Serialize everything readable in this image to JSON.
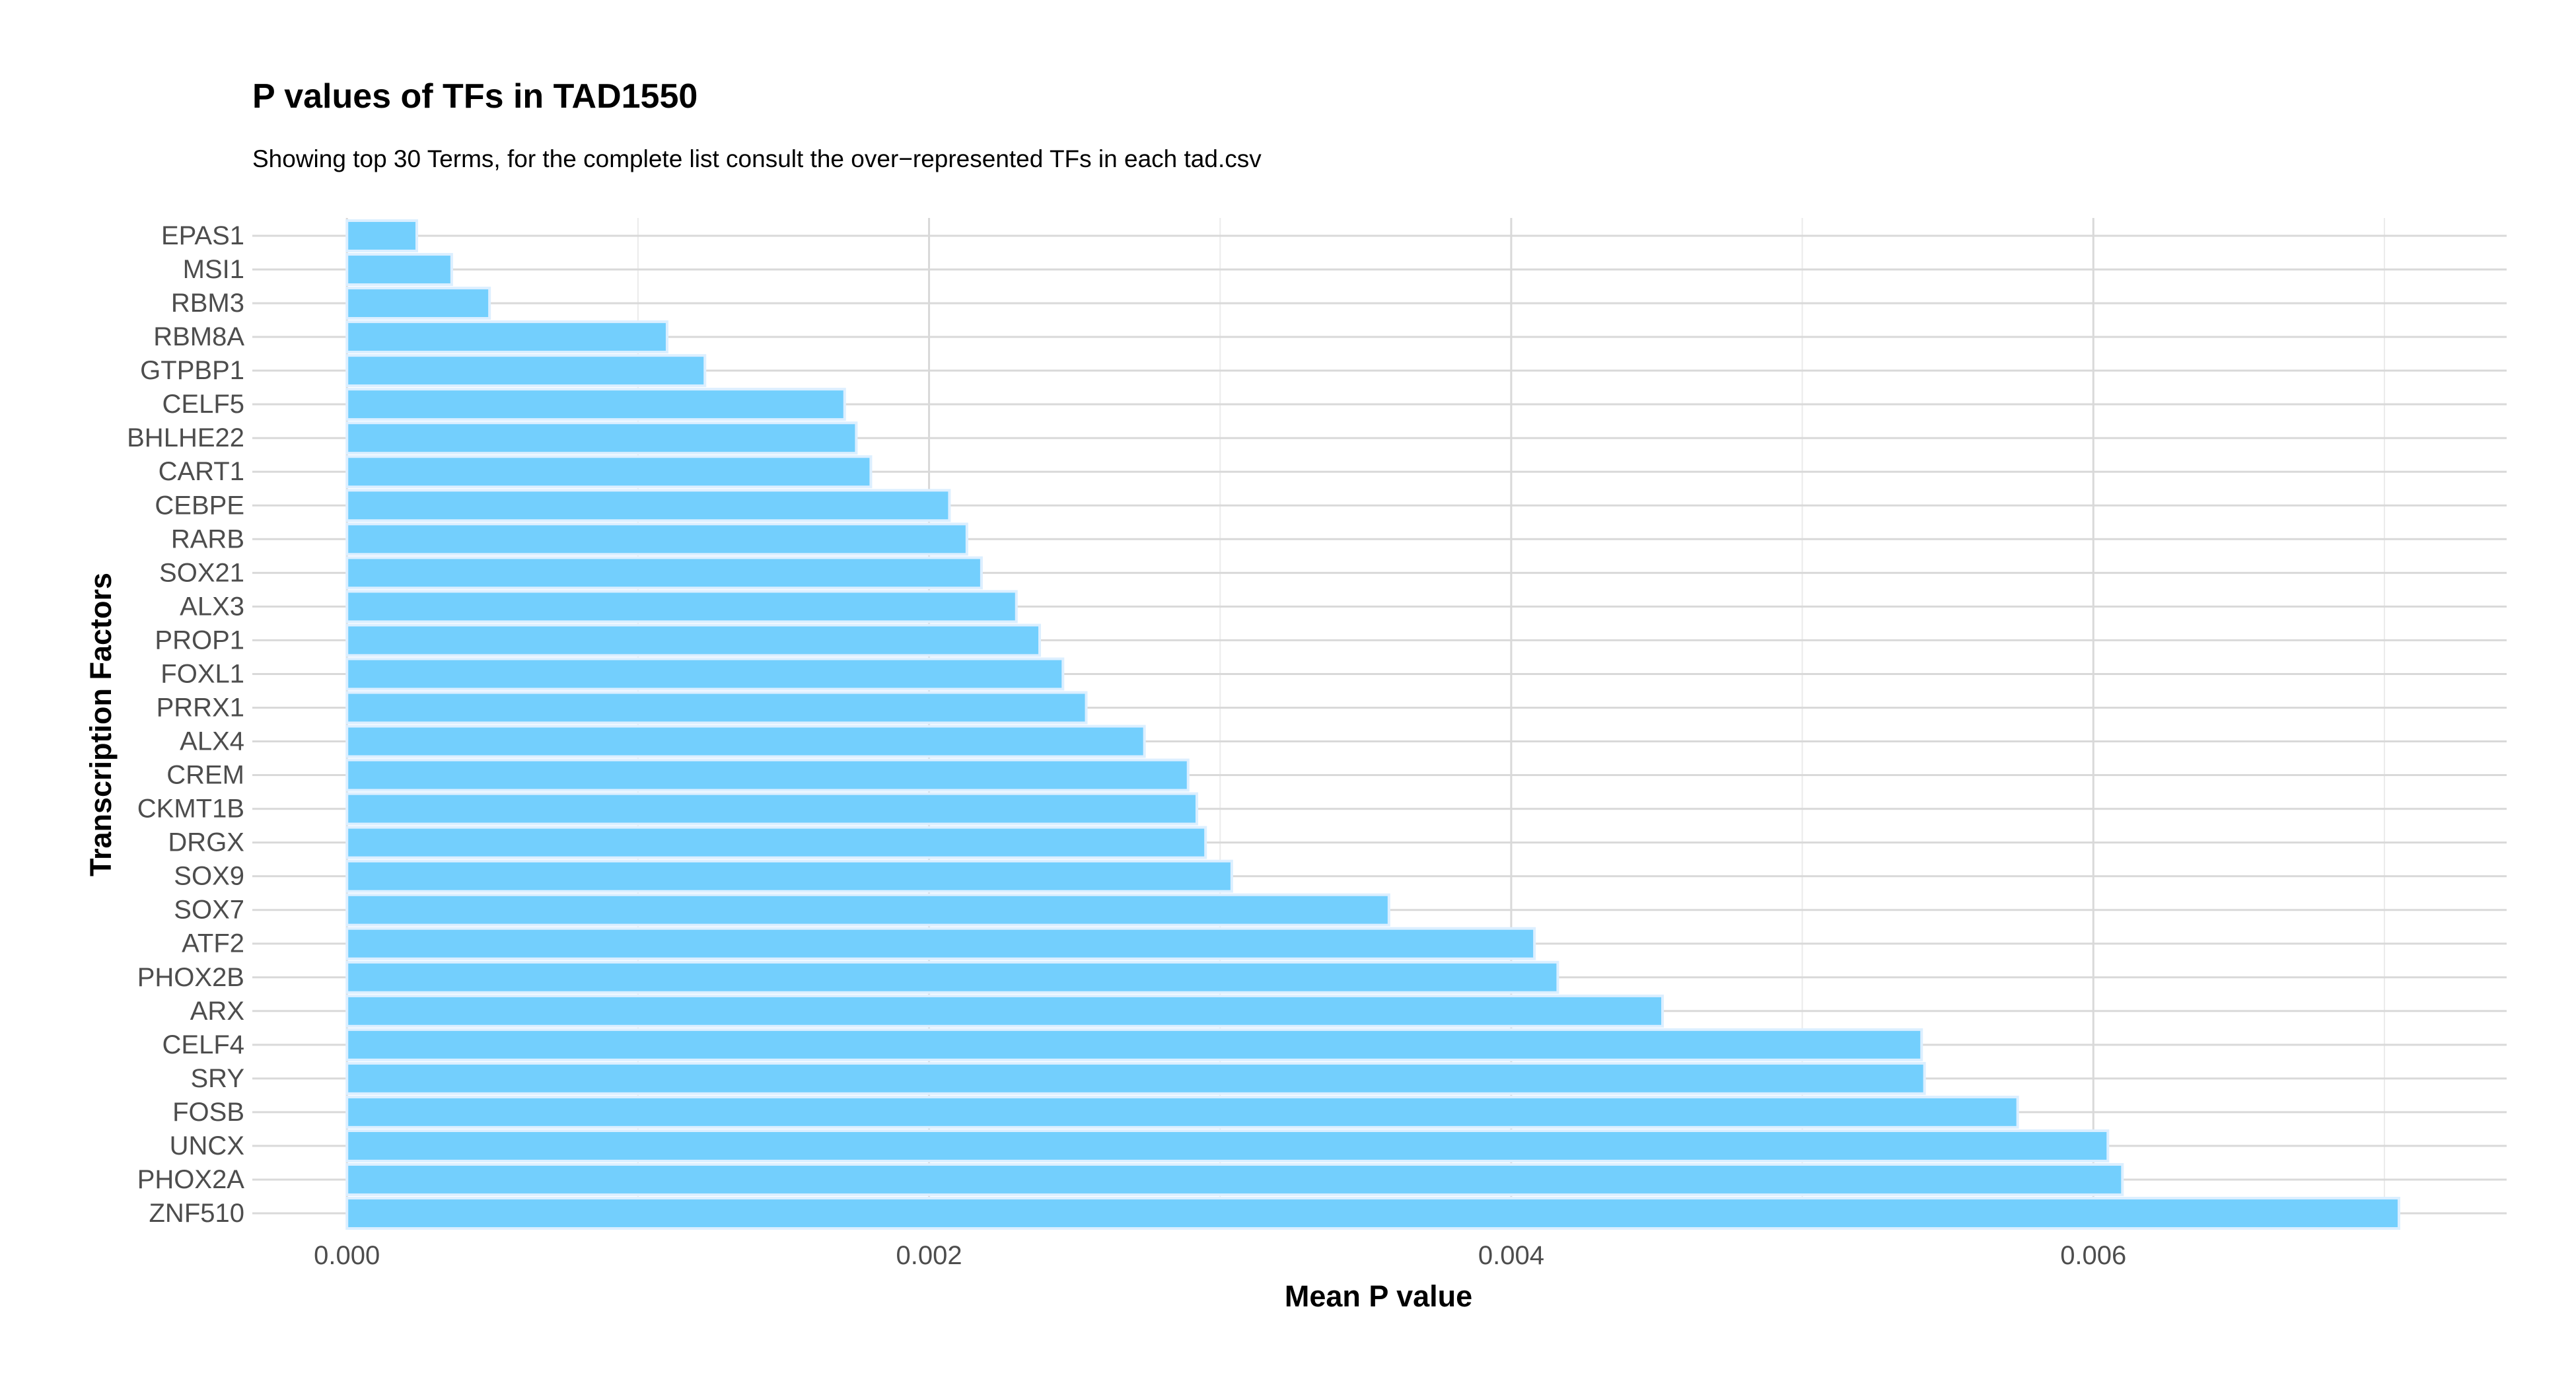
{
  "chart_data": {
    "type": "bar",
    "orientation": "horizontal",
    "title": "P values of TFs in TAD1550",
    "subtitle": "Showing top 30 Terms, for the complete list consult the over−represented TFs in each tad.csv",
    "xlabel": "Mean P value",
    "ylabel": "Transcription Factors",
    "xlim": [
      -0.000325,
      0.00742
    ],
    "x_ticks": [
      0.0,
      0.002,
      0.004,
      0.006
    ],
    "x_tick_labels": [
      "0.000",
      "0.002",
      "0.004",
      "0.006"
    ],
    "x_minor_ticks": [
      0.001,
      0.003,
      0.005,
      0.007
    ],
    "grid": true,
    "bar_color": "#73cffd",
    "bar_outline_color": "#dcefff",
    "categories": [
      "EPAS1",
      "MSI1",
      "RBM3",
      "RBM8A",
      "GTPBP1",
      "CELF5",
      "BHLHE22",
      "CART1",
      "CEBPE",
      "RARB",
      "SOX21",
      "ALX3",
      "PROP1",
      "FOXL1",
      "PRRX1",
      "ALX4",
      "CREM",
      "CKMT1B",
      "DRGX",
      "SOX9",
      "SOX7",
      "ATF2",
      "PHOX2B",
      "ARX",
      "CELF4",
      "SRY",
      "FOSB",
      "UNCX",
      "PHOX2A",
      "ZNF510"
    ],
    "values": [
      0.00024,
      0.00036,
      0.00049,
      0.0011,
      0.00123,
      0.00171,
      0.00175,
      0.0018,
      0.00207,
      0.00213,
      0.00218,
      0.0023,
      0.00238,
      0.00246,
      0.00254,
      0.00274,
      0.00289,
      0.00292,
      0.00295,
      0.00304,
      0.00358,
      0.00408,
      0.00416,
      0.00452,
      0.00541,
      0.00542,
      0.00574,
      0.00605,
      0.0061,
      0.00705
    ]
  }
}
